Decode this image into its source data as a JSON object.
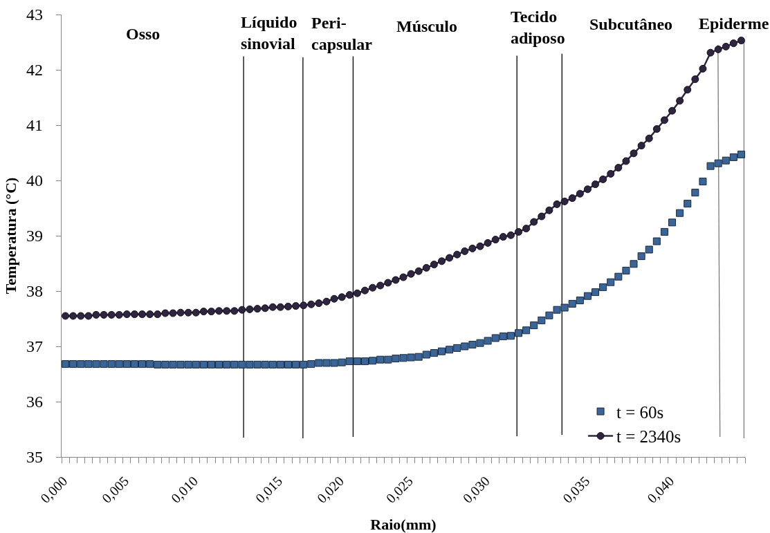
{
  "chart_data": {
    "type": "line",
    "xlabel": "Raio(mm)",
    "ylabel": "Temperatura (°C)",
    "categories": [
      "0,000",
      null,
      null,
      null,
      null,
      null,
      null,
      null,
      "0,005",
      null,
      null,
      null,
      null,
      null,
      null,
      null,
      null,
      "0,010",
      null,
      null,
      null,
      null,
      null,
      null,
      null,
      null,
      null,
      null,
      "0,015",
      null,
      null,
      null,
      null,
      null,
      null,
      null,
      "0,020",
      null,
      null,
      null,
      null,
      null,
      null,
      null,
      null,
      "0,025",
      null,
      null,
      null,
      null,
      null,
      null,
      null,
      null,
      null,
      "0,030",
      null,
      null,
      null,
      null,
      null,
      null,
      null,
      null,
      null,
      null,
      null,
      null,
      "0,035",
      null,
      null,
      null,
      null,
      null,
      null,
      null,
      null,
      null,
      null,
      "0,040",
      null,
      null,
      null,
      null,
      null,
      null,
      null,
      null,
      null
    ],
    "series": [
      {
        "name": "t = 60s",
        "type": "scatter",
        "marker": "square",
        "color": "#3a6599",
        "values": [
          36.68,
          36.68,
          36.68,
          36.68,
          36.68,
          36.68,
          36.68,
          36.68,
          36.68,
          36.68,
          36.68,
          36.68,
          36.67,
          36.67,
          36.67,
          36.67,
          36.67,
          36.67,
          36.67,
          36.67,
          36.67,
          36.67,
          36.67,
          36.67,
          36.67,
          36.67,
          36.67,
          36.67,
          36.67,
          36.67,
          36.67,
          36.67,
          36.68,
          36.7,
          36.7,
          36.7,
          36.71,
          36.73,
          36.73,
          36.73,
          36.74,
          36.76,
          36.76,
          36.78,
          36.79,
          36.8,
          36.81,
          36.85,
          36.88,
          36.91,
          36.94,
          36.97,
          37.0,
          37.03,
          37.06,
          37.1,
          37.15,
          37.18,
          37.19,
          37.24,
          37.29,
          37.38,
          37.47,
          37.56,
          37.66,
          37.7,
          37.77,
          37.83,
          37.91,
          37.98,
          38.07,
          38.16,
          38.26,
          38.37,
          38.49,
          38.63,
          38.75,
          38.9,
          39.07,
          39.24,
          39.41,
          39.58,
          39.78,
          39.98,
          40.26,
          40.31,
          40.36,
          40.42,
          40.47
        ]
      },
      {
        "name": "t = 2340s",
        "marker": "circle",
        "color": "#2f2540",
        "values": [
          37.55,
          37.55,
          37.55,
          37.55,
          37.57,
          37.57,
          37.57,
          37.57,
          37.58,
          37.58,
          37.58,
          37.58,
          37.58,
          37.6,
          37.6,
          37.61,
          37.61,
          37.61,
          37.63,
          37.63,
          37.64,
          37.64,
          37.64,
          37.66,
          37.67,
          37.68,
          37.69,
          37.71,
          37.71,
          37.72,
          37.73,
          37.74,
          37.76,
          37.78,
          37.81,
          37.86,
          37.89,
          37.93,
          37.96,
          38.01,
          38.06,
          38.1,
          38.15,
          38.2,
          38.25,
          38.31,
          38.36,
          38.42,
          38.48,
          38.54,
          38.6,
          38.66,
          38.72,
          38.77,
          38.81,
          38.87,
          38.93,
          38.98,
          39.01,
          39.07,
          39.13,
          39.25,
          39.35,
          39.46,
          39.57,
          39.62,
          39.68,
          39.76,
          39.84,
          39.93,
          40.02,
          40.12,
          40.23,
          40.35,
          40.49,
          40.63,
          40.76,
          40.93,
          41.09,
          41.26,
          41.44,
          41.64,
          41.83,
          42.02,
          42.31,
          42.37,
          42.42,
          42.48,
          42.53
        ]
      }
    ],
    "ylim": [
      35,
      43
    ],
    "yticks": [
      35,
      36,
      37,
      38,
      39,
      40,
      41,
      42,
      43
    ],
    "annotations": [
      "Osso",
      "Líquido\nsinovial",
      "Peri-\ncapsular",
      "Músculo",
      "Tecido\nadiposo",
      "Subcutâneo",
      "Epiderme"
    ],
    "legend": "bottom right"
  }
}
